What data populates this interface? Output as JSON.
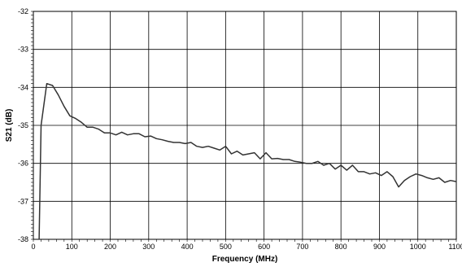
{
  "chart_data": {
    "type": "line",
    "title": "",
    "xlabel": "Frequency (MHz)",
    "ylabel": "S21 (dB)",
    "xlim": [
      0,
      1100
    ],
    "ylim": [
      -38,
      -32
    ],
    "grid": true,
    "legend": "none",
    "x_ticks": [
      "0",
      "100",
      "200",
      "300",
      "400",
      "500",
      "600",
      "700",
      "800",
      "900",
      "1000",
      "1100"
    ],
    "y_ticks": [
      "-32",
      "-33",
      "-34",
      "-35",
      "-36",
      "-37",
      "-38"
    ],
    "series": [
      {
        "color": "#333333",
        "x": [
          15,
          20,
          35,
          50,
          65,
          80,
          95,
          110,
          125,
          140,
          155,
          170,
          185,
          200,
          215,
          230,
          245,
          260,
          275,
          290,
          305,
          320,
          335,
          350,
          365,
          380,
          395,
          410,
          425,
          440,
          455,
          470,
          485,
          500,
          515,
          530,
          545,
          560,
          575,
          590,
          605,
          620,
          635,
          650,
          665,
          680,
          695,
          710,
          725,
          740,
          755,
          770,
          785,
          800,
          815,
          830,
          845,
          860,
          875,
          890,
          905,
          920,
          935,
          950,
          965,
          980,
          995,
          1010,
          1025,
          1040,
          1055,
          1070,
          1085,
          1100
        ],
        "y": [
          -38.0,
          -35.0,
          -33.9,
          -33.95,
          -34.2,
          -34.5,
          -34.75,
          -34.82,
          -34.92,
          -35.05,
          -35.05,
          -35.1,
          -35.2,
          -35.2,
          -35.25,
          -35.18,
          -35.25,
          -35.22,
          -35.22,
          -35.3,
          -35.28,
          -35.35,
          -35.38,
          -35.42,
          -35.45,
          -35.45,
          -35.48,
          -35.45,
          -35.55,
          -35.58,
          -35.55,
          -35.6,
          -35.65,
          -35.55,
          -35.75,
          -35.68,
          -35.78,
          -35.75,
          -35.72,
          -35.88,
          -35.72,
          -35.88,
          -35.87,
          -35.9,
          -35.9,
          -35.95,
          -35.97,
          -36.0,
          -36.0,
          -35.95,
          -36.05,
          -36.0,
          -36.15,
          -36.05,
          -36.18,
          -36.05,
          -36.22,
          -36.22,
          -36.28,
          -36.25,
          -36.32,
          -36.22,
          -36.35,
          -36.62,
          -36.45,
          -36.35,
          -36.28,
          -36.32,
          -36.38,
          -36.42,
          -36.38,
          -36.5,
          -36.45,
          -36.48
        ]
      }
    ]
  }
}
